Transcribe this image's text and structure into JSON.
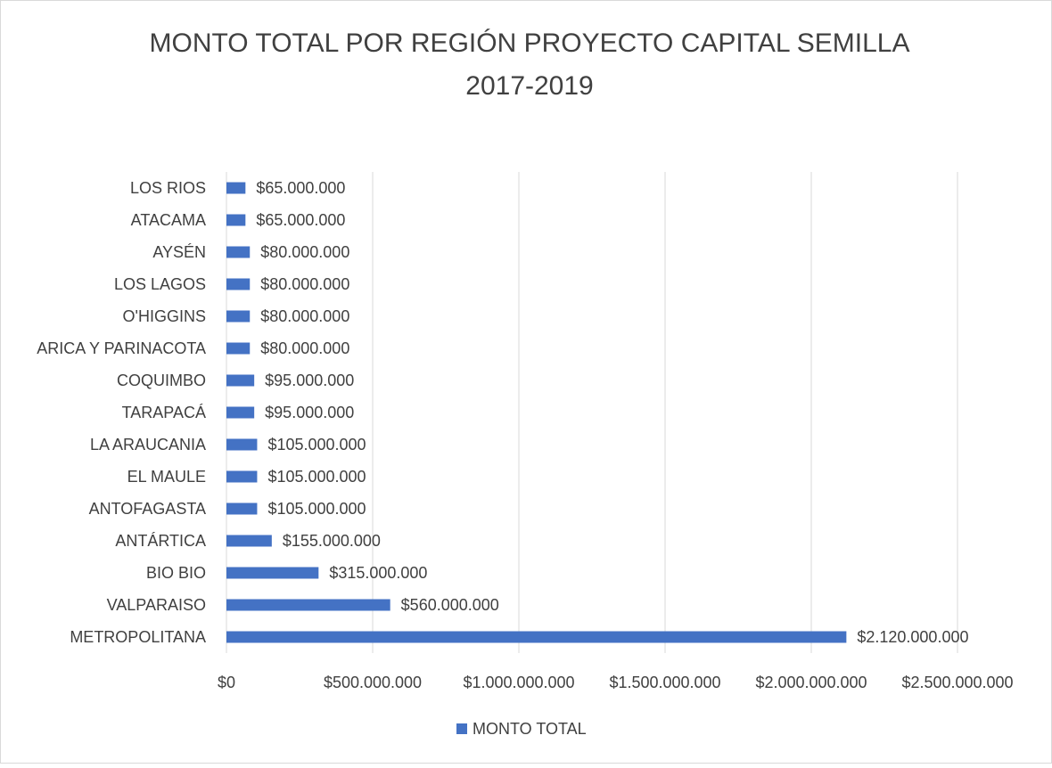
{
  "chart_data": {
    "type": "bar",
    "title": [
      "MONTO TOTAL POR REGIÓN PROYECTO CAPITAL SEMILLA",
      "2017-2019"
    ],
    "categories": [
      "LOS RIOS",
      "ATACAMA",
      "AYSÉN",
      "LOS LAGOS",
      "O'HIGGINS",
      "ARICA Y PARINACOTA",
      "COQUIMBO",
      "TARAPACÁ",
      "LA ARAUCANIA",
      "EL MAULE",
      "ANTOFAGASTA",
      "ANTÁRTICA",
      "BIO BIO",
      "VALPARAISO",
      "METROPOLITANA"
    ],
    "series": [
      {
        "name": "MONTO TOTAL",
        "color": "#4472c4",
        "values": [
          65000000,
          65000000,
          80000000,
          80000000,
          80000000,
          80000000,
          95000000,
          95000000,
          105000000,
          105000000,
          105000000,
          155000000,
          315000000,
          560000000,
          2120000000
        ],
        "value_labels": [
          "$65.000.000",
          "$65.000.000",
          "$80.000.000",
          "$80.000.000",
          "$80.000.000",
          "$80.000.000",
          "$95.000.000",
          "$95.000.000",
          "$105.000.000",
          "$105.000.000",
          "$105.000.000",
          "$155.000.000",
          "$315.000.000",
          "$560.000.000",
          "$2.120.000.000"
        ]
      }
    ],
    "xlim": [
      0,
      2500000000
    ],
    "xticks": [
      {
        "value": 0,
        "label": "$0"
      },
      {
        "value": 500000000,
        "label": "$500.000.000"
      },
      {
        "value": 1000000000,
        "label": "$1.000.000.000"
      },
      {
        "value": 1500000000,
        "label": "$1.500.000.000"
      },
      {
        "value": 2000000000,
        "label": "$2.000.000.000"
      },
      {
        "value": 2500000000,
        "label": "$2.500.000.000"
      }
    ],
    "grid": true,
    "legend": "bottom"
  }
}
